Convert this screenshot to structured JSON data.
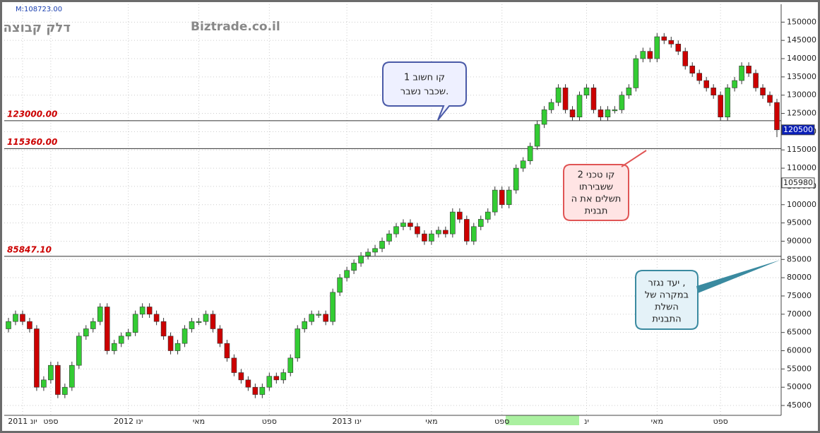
{
  "chart_data": {
    "type": "candlestick",
    "title": "דלק קבוצה",
    "watermark": "Biztrade.co.il",
    "header_note": "M:108723.00",
    "up_color": "#33cc33",
    "down_color": "#cc0000",
    "grid": true,
    "ylim": [
      42300,
      154900
    ],
    "yticks": [
      45000,
      50000,
      55000,
      60000,
      65000,
      70000,
      75000,
      80000,
      85000,
      90000,
      95000,
      100000,
      105000,
      110000,
      115000,
      120000,
      125000,
      130000,
      135000,
      140000,
      145000,
      150000
    ],
    "categories": [
      null,
      null,
      "2011 יונ",
      null,
      null,
      null,
      "ספט",
      null,
      null,
      null,
      null,
      null,
      null,
      null,
      null,
      null,
      null,
      "2012 ינו",
      null,
      null,
      null,
      null,
      null,
      null,
      null,
      null,
      null,
      "מאי",
      null,
      null,
      null,
      null,
      null,
      null,
      null,
      null,
      null,
      "ספט",
      null,
      null,
      null,
      null,
      null,
      null,
      null,
      null,
      null,
      null,
      "2013 ינו",
      null,
      null,
      null,
      null,
      null,
      null,
      null,
      null,
      null,
      null,
      null,
      "מאי",
      null,
      null,
      null,
      null,
      null,
      null,
      null,
      null,
      null,
      "ספט",
      null,
      null,
      null,
      null,
      null,
      null,
      null,
      null,
      null,
      null,
      null,
      "ינ",
      null,
      null,
      null,
      null,
      null,
      null,
      null,
      null,
      null,
      "מאי",
      null,
      null,
      null,
      null,
      null,
      null,
      null,
      null,
      "ספט",
      null,
      null,
      null,
      null,
      null,
      null,
      null,
      null
    ],
    "open": [
      66000,
      68000,
      70000,
      68000,
      66000,
      50000,
      52000,
      56000,
      48000,
      50000,
      56000,
      64000,
      66000,
      68000,
      72000,
      60000,
      62000,
      64000,
      65000,
      70000,
      72000,
      70000,
      68000,
      64000,
      60000,
      62000,
      66000,
      68000,
      68000,
      70000,
      66000,
      62000,
      58000,
      54000,
      52000,
      50000,
      48000,
      50000,
      53000,
      52000,
      54000,
      58000,
      66000,
      68000,
      70000,
      70000,
      68000,
      76000,
      80000,
      82000,
      84000,
      86000,
      87000,
      88000,
      90000,
      92000,
      94000,
      95000,
      94000,
      92000,
      90000,
      92000,
      93000,
      92000,
      98000,
      96000,
      90000,
      94000,
      96000,
      98000,
      104000,
      100000,
      104000,
      110000,
      112000,
      116000,
      122000,
      126000,
      128000,
      132000,
      126000,
      124000,
      130000,
      132000,
      126000,
      124000,
      126000,
      126000,
      130000,
      132000,
      140000,
      142000,
      140000,
      146000,
      145000,
      144000,
      142000,
      138000,
      136000,
      134000,
      132000,
      130000,
      124000,
      132000,
      134000,
      138000,
      136000,
      132000,
      130000,
      128000
    ],
    "high": [
      69000,
      71000,
      71000,
      69000,
      67000,
      53000,
      57000,
      57000,
      51000,
      57000,
      65000,
      67000,
      69000,
      73000,
      73000,
      63000,
      65000,
      66000,
      71000,
      73000,
      73000,
      71000,
      69000,
      65000,
      63000,
      67000,
      69000,
      69000,
      71000,
      71000,
      67000,
      63000,
      59000,
      55000,
      53000,
      51000,
      51000,
      54000,
      54000,
      55000,
      59000,
      67000,
      69000,
      71000,
      71000,
      71000,
      77000,
      81000,
      83000,
      85000,
      87000,
      88000,
      89000,
      91000,
      93000,
      95000,
      96000,
      96000,
      95000,
      93000,
      93000,
      94000,
      94000,
      99000,
      99000,
      97000,
      95000,
      97000,
      99000,
      105000,
      105000,
      105000,
      111000,
      113000,
      117000,
      123000,
      127000,
      129000,
      133000,
      133000,
      127000,
      131000,
      133000,
      133000,
      127000,
      127000,
      127000,
      131000,
      133000,
      141000,
      143000,
      143000,
      147000,
      147000,
      146000,
      145000,
      143000,
      139000,
      137000,
      135000,
      133000,
      131000,
      133000,
      135000,
      139000,
      139000,
      137000,
      133000,
      131000,
      129000
    ],
    "low": [
      65000,
      67000,
      67000,
      65000,
      49000,
      49000,
      51000,
      47000,
      47000,
      49000,
      55000,
      63000,
      65000,
      67000,
      59000,
      59000,
      61000,
      63000,
      64000,
      69000,
      69000,
      67000,
      63000,
      59000,
      59000,
      61000,
      65000,
      67000,
      67000,
      65000,
      61000,
      57000,
      53000,
      51000,
      49000,
      47000,
      47000,
      49000,
      51000,
      51000,
      53000,
      57000,
      65000,
      67000,
      69000,
      67000,
      67000,
      75000,
      79000,
      81000,
      83000,
      85000,
      86000,
      87000,
      89000,
      91000,
      93000,
      93000,
      91000,
      89000,
      89000,
      91000,
      91000,
      91000,
      95000,
      89000,
      89000,
      93000,
      95000,
      97000,
      99000,
      99000,
      103000,
      109000,
      111000,
      115000,
      121000,
      125000,
      127000,
      125000,
      123000,
      123000,
      129000,
      125000,
      123000,
      123000,
      125000,
      125000,
      129000,
      131000,
      139000,
      139000,
      139000,
      144000,
      143000,
      141000,
      137000,
      135000,
      133000,
      131000,
      129000,
      123000,
      123000,
      131000,
      133000,
      135000,
      131000,
      129000,
      127000,
      118500
    ],
    "close": [
      68000,
      70000,
      68000,
      66000,
      50000,
      52000,
      56000,
      48000,
      50000,
      56000,
      64000,
      66000,
      68000,
      72000,
      60000,
      62000,
      64000,
      65000,
      70000,
      72000,
      70000,
      68000,
      64000,
      60000,
      62000,
      66000,
      68000,
      68000,
      70000,
      66000,
      62000,
      58000,
      54000,
      52000,
      50000,
      48000,
      50000,
      53000,
      52000,
      54000,
      58000,
      66000,
      68000,
      70000,
      70000,
      68000,
      76000,
      80000,
      82000,
      84000,
      86000,
      87000,
      88000,
      90000,
      92000,
      94000,
      95000,
      94000,
      92000,
      90000,
      92000,
      93000,
      92000,
      98000,
      96000,
      90000,
      94000,
      96000,
      98000,
      104000,
      100000,
      104000,
      110000,
      112000,
      116000,
      122000,
      126000,
      128000,
      132000,
      126000,
      124000,
      130000,
      132000,
      126000,
      124000,
      126000,
      126000,
      130000,
      132000,
      140000,
      142000,
      140000,
      146000,
      145000,
      144000,
      142000,
      138000,
      136000,
      134000,
      132000,
      130000,
      124000,
      132000,
      134000,
      138000,
      136000,
      132000,
      130000,
      128000,
      120500
    ],
    "levels": [
      {
        "value": 123000,
        "label": "123000.00"
      },
      {
        "value": 115360,
        "label": "115360.00"
      },
      {
        "value": 85847.1,
        "label": "85847.10"
      }
    ],
    "price_tags": [
      120500,
      105980
    ],
    "annotations": [
      {
        "lines": [
          "קו חשוב 1",
          "שכבר נשבר."
        ]
      },
      {
        "lines": [
          "קו טכני 2",
          "ששבירתו",
          "תשלים את ה",
          "תבנית"
        ]
      },
      {
        "lines": [
          "יעד נגזר ,",
          "במקרה של",
          "השלת",
          "התבנית"
        ]
      }
    ]
  }
}
